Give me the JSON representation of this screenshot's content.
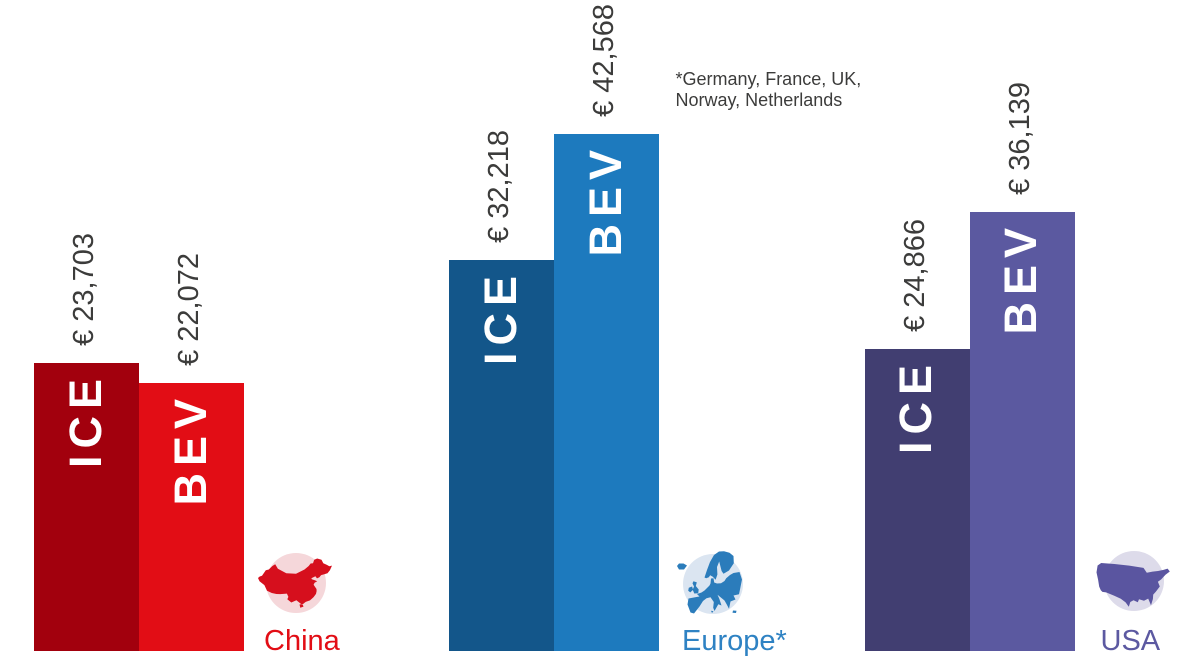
{
  "chart_data": {
    "type": "bar",
    "unit_symbol": "€",
    "value_label_color": "#3c3c3b",
    "bar_text_color": "#ffffff",
    "footnote": "*Germany, France, UK,\nNorway, Netherlands",
    "footnote_color": "#3c3c3b",
    "categories": [
      "China",
      "Europe*",
      "USA"
    ],
    "series": [
      {
        "name": "ICE",
        "values": [
          23703,
          32218,
          24866
        ]
      },
      {
        "name": "BEV",
        "values": [
          22072,
          42568,
          36139
        ]
      }
    ],
    "groups": [
      {
        "country": "China",
        "icon": "china-map-icon",
        "label_color": "#e20d15",
        "icon_circle_color": "#f5d7da",
        "icon_map_color": "#d60f1d",
        "bars": [
          {
            "label": "ICE",
            "value": 23703,
            "display": "€ 23,703",
            "color": "#a2000d"
          },
          {
            "label": "BEV",
            "value": 22072,
            "display": "€ 22,072",
            "color": "#e20d15"
          }
        ]
      },
      {
        "country": "Europe*",
        "icon": "europe-map-icon",
        "label_color": "#2e82c3",
        "icon_circle_color": "#dbe5f1",
        "icon_map_color": "#2b7cbb",
        "bars": [
          {
            "label": "ICE",
            "value": 32218,
            "display": "€ 32,218",
            "color": "#13568a"
          },
          {
            "label": "BEV",
            "value": 42568,
            "display": "€ 42,568",
            "color": "#1d7abe"
          }
        ]
      },
      {
        "country": "USA",
        "icon": "usa-map-icon",
        "label_color": "#5c59a1",
        "icon_circle_color": "#dddbea",
        "icon_map_color": "#5a55a0",
        "bars": [
          {
            "label": "ICE",
            "value": 24866,
            "display": "€ 24,866",
            "color": "#413e71"
          },
          {
            "label": "BEV",
            "value": 36139,
            "display": "€ 36,139",
            "color": "#5b59a0"
          }
        ]
      }
    ]
  }
}
